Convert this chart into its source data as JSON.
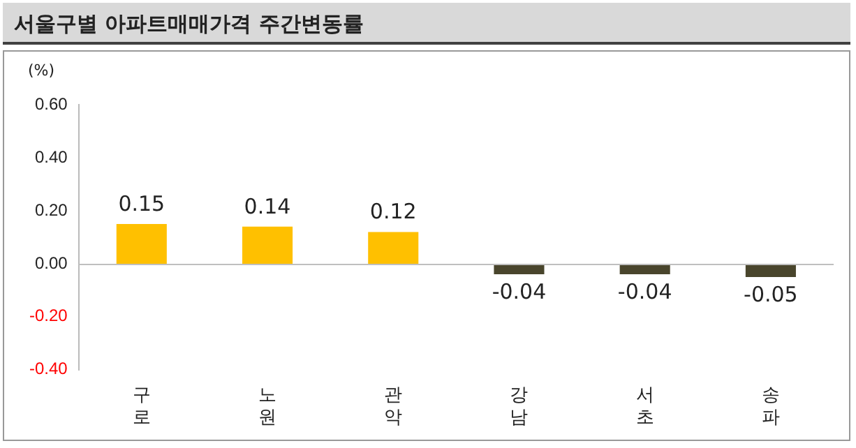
{
  "chart_data": {
    "type": "bar",
    "title": "서울구별 아파트매매가격 주간변동률",
    "ylabel": "(%)",
    "categories": [
      "구로",
      "노원",
      "관악",
      "강남",
      "서초",
      "송파"
    ],
    "values": [
      0.15,
      0.14,
      0.12,
      -0.04,
      -0.04,
      -0.05
    ],
    "colors": [
      "#ffc000",
      "#ffc000",
      "#ffc000",
      "#49452c",
      "#49452c",
      "#49452c"
    ],
    "ylim": [
      -0.4,
      0.6
    ],
    "yticks": [
      {
        "value": -0.4,
        "label": "-0.40"
      },
      {
        "value": -0.2,
        "label": "-0.20"
      },
      {
        "value": 0,
        "label": "0.00"
      },
      {
        "value": 0.2,
        "label": "0.20"
      },
      {
        "value": 0.4,
        "label": "0.40"
      },
      {
        "value": 0.6,
        "label": "0.60"
      }
    ],
    "ref_lines": [
      {
        "axis": "y",
        "value": 0,
        "color": "#bfbfbf"
      }
    ],
    "data_labels": true,
    "grid": false,
    "legend": false
  }
}
